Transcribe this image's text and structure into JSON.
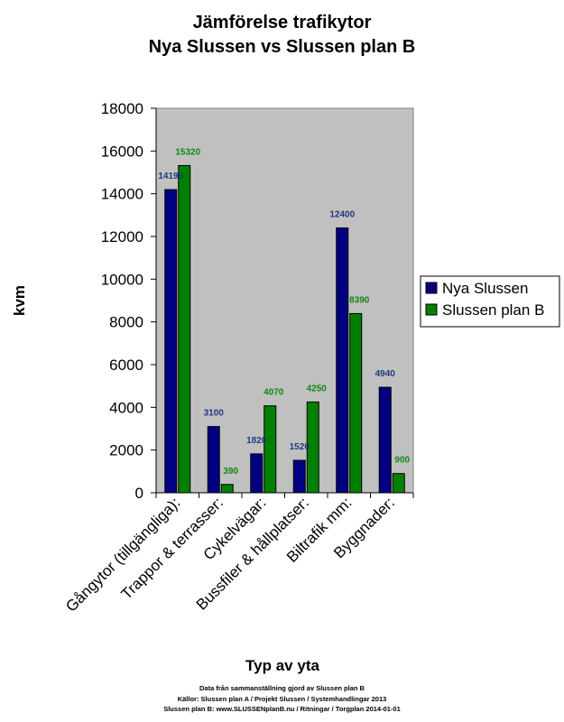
{
  "chart_data": {
    "type": "bar",
    "title": [
      "Jämförelse trafikytor",
      "Nya Slussen vs Slussen plan B"
    ],
    "xlabel": "Typ av yta",
    "ylabel": "kvm",
    "ylim": [
      0,
      18000
    ],
    "yticks": [
      0,
      2000,
      4000,
      6000,
      8000,
      10000,
      12000,
      14000,
      16000,
      18000
    ],
    "grid": false,
    "legend_position": "right",
    "categories": [
      "Gångytor (tillgängliga):",
      "Trappor & terrasser:",
      "Cykelvägar:",
      "Bussfiler & hållplatser:",
      "Biltrafik mm:",
      "Byggnader:"
    ],
    "series": [
      {
        "name": "Nya Slussen",
        "color": "#000080",
        "label_color": "#1f3a7a",
        "values": [
          14195,
          3100,
          1820,
          1520,
          12400,
          4940
        ]
      },
      {
        "name": "Slussen plan B",
        "color": "#008000",
        "label_color": "#118811",
        "values": [
          15320,
          390,
          4070,
          4250,
          8390,
          900
        ]
      }
    ]
  },
  "footer": {
    "line1": "Data från sammanställning gjord av Slussen plan B",
    "line2": "Källor: Slussen plan A / Projekt Slussen / Systemhandlingar 2013",
    "line3": "Slussen plan B: www.SLUSSENplanB.nu / Ritningar / Torgplan 2014-01-01"
  },
  "colors": {
    "plot_background": "#c0c0c0",
    "frame": "#808080"
  }
}
